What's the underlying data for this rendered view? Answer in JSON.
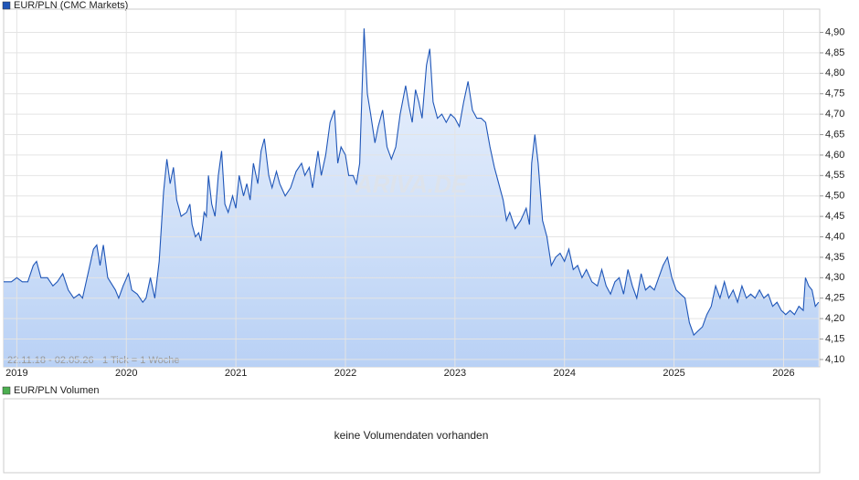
{
  "chart_data": {
    "type": "area",
    "x": [
      2018.88,
      2018.95,
      2019.0,
      2019.05,
      2019.1,
      2019.15,
      2019.18,
      2019.22,
      2019.28,
      2019.33,
      2019.37,
      2019.42,
      2019.47,
      2019.52,
      2019.57,
      2019.6,
      2019.65,
      2019.7,
      2019.73,
      2019.76,
      2019.79,
      2019.83,
      2019.9,
      2019.93,
      2019.97,
      2020.02,
      2020.05,
      2020.1,
      2020.15,
      2020.18,
      2020.22,
      2020.26,
      2020.3,
      2020.34,
      2020.37,
      2020.4,
      2020.43,
      2020.46,
      2020.5,
      2020.55,
      2020.58,
      2020.6,
      2020.63,
      2020.66,
      2020.68,
      2020.71,
      2020.73,
      2020.75,
      2020.78,
      2020.81,
      2020.84,
      2020.87,
      2020.9,
      2020.93,
      2020.97,
      2021.0,
      2021.03,
      2021.07,
      2021.1,
      2021.13,
      2021.16,
      2021.2,
      2021.23,
      2021.26,
      2021.3,
      2021.33,
      2021.37,
      2021.4,
      2021.45,
      2021.5,
      2021.55,
      2021.6,
      2021.63,
      2021.67,
      2021.7,
      2021.75,
      2021.78,
      2021.82,
      2021.86,
      2021.9,
      2021.93,
      2021.96,
      2022.0,
      2022.03,
      2022.07,
      2022.1,
      2022.13,
      2022.17,
      2022.2,
      2022.23,
      2022.27,
      2022.3,
      2022.34,
      2022.38,
      2022.42,
      2022.46,
      2022.5,
      2022.55,
      2022.58,
      2022.61,
      2022.64,
      2022.67,
      2022.7,
      2022.74,
      2022.77,
      2022.8,
      2022.84,
      2022.88,
      2022.92,
      2022.96,
      2023.0,
      2023.04,
      2023.08,
      2023.12,
      2023.16,
      2023.2,
      2023.24,
      2023.28,
      2023.32,
      2023.36,
      2023.4,
      2023.44,
      2023.47,
      2023.5,
      2023.55,
      2023.6,
      2023.65,
      2023.68,
      2023.7,
      2023.73,
      2023.76,
      2023.8,
      2023.84,
      2023.88,
      2023.92,
      2023.96,
      2024.0,
      2024.04,
      2024.08,
      2024.12,
      2024.16,
      2024.2,
      2024.25,
      2024.3,
      2024.34,
      2024.38,
      2024.42,
      2024.46,
      2024.5,
      2024.54,
      2024.58,
      2024.62,
      2024.66,
      2024.7,
      2024.74,
      2024.78,
      2024.82,
      2024.86,
      2024.9,
      2024.94,
      2024.98,
      2025.02,
      2025.06,
      2025.1,
      2025.14,
      2025.18,
      2025.22,
      2025.26,
      2025.3,
      2025.34,
      2025.38,
      2025.42,
      2025.46,
      2025.5,
      2025.54,
      2025.58,
      2025.62,
      2025.66,
      2025.7,
      2025.74,
      2025.78,
      2025.82,
      2025.86,
      2025.9,
      2025.94,
      2025.98,
      2026.02,
      2026.06,
      2026.1,
      2026.14,
      2026.18,
      2026.2,
      2026.23,
      2026.26,
      2026.29,
      2026.32
    ],
    "series": [
      {
        "name": "EUR/PLN (CMC Markets)",
        "color": "#1f56b8",
        "values": [
          4.29,
          4.29,
          4.3,
          4.29,
          4.29,
          4.33,
          4.34,
          4.3,
          4.3,
          4.28,
          4.29,
          4.31,
          4.27,
          4.25,
          4.26,
          4.25,
          4.31,
          4.37,
          4.38,
          4.33,
          4.38,
          4.3,
          4.27,
          4.25,
          4.28,
          4.31,
          4.27,
          4.26,
          4.24,
          4.25,
          4.3,
          4.25,
          4.34,
          4.51,
          4.59,
          4.53,
          4.57,
          4.49,
          4.45,
          4.46,
          4.48,
          4.43,
          4.4,
          4.41,
          4.39,
          4.46,
          4.45,
          4.55,
          4.48,
          4.45,
          4.55,
          4.61,
          4.48,
          4.46,
          4.5,
          4.47,
          4.55,
          4.5,
          4.53,
          4.49,
          4.58,
          4.53,
          4.61,
          4.64,
          4.55,
          4.52,
          4.56,
          4.53,
          4.5,
          4.52,
          4.56,
          4.58,
          4.55,
          4.57,
          4.52,
          4.61,
          4.55,
          4.6,
          4.68,
          4.71,
          4.58,
          4.62,
          4.6,
          4.55,
          4.55,
          4.53,
          4.58,
          4.91,
          4.75,
          4.7,
          4.63,
          4.67,
          4.71,
          4.62,
          4.59,
          4.62,
          4.7,
          4.77,
          4.72,
          4.68,
          4.76,
          4.73,
          4.69,
          4.82,
          4.86,
          4.73,
          4.69,
          4.7,
          4.68,
          4.7,
          4.69,
          4.67,
          4.73,
          4.78,
          4.71,
          4.69,
          4.69,
          4.68,
          4.62,
          4.57,
          4.53,
          4.49,
          4.44,
          4.46,
          4.42,
          4.44,
          4.47,
          4.43,
          4.58,
          4.65,
          4.58,
          4.44,
          4.4,
          4.33,
          4.35,
          4.36,
          4.34,
          4.37,
          4.32,
          4.33,
          4.3,
          4.32,
          4.29,
          4.28,
          4.32,
          4.28,
          4.26,
          4.29,
          4.3,
          4.26,
          4.32,
          4.28,
          4.25,
          4.31,
          4.27,
          4.28,
          4.27,
          4.3,
          4.33,
          4.35,
          4.3,
          4.27,
          4.26,
          4.25,
          4.19,
          4.16,
          4.17,
          4.18,
          4.21,
          4.23,
          4.28,
          4.25,
          4.29,
          4.25,
          4.27,
          4.24,
          4.28,
          4.25,
          4.26,
          4.25,
          4.27,
          4.25,
          4.26,
          4.23,
          4.24,
          4.22,
          4.21,
          4.22,
          4.21,
          4.23,
          4.22,
          4.3,
          4.28,
          4.27,
          4.23,
          4.24
        ]
      }
    ],
    "xlim": [
      2018.88,
      2026.33
    ],
    "xticks": [
      2019,
      2020,
      2021,
      2022,
      2023,
      2024,
      2025,
      2026
    ],
    "ylim": [
      4.082,
      4.957
    ],
    "yticks": [
      {
        "value": 4.1,
        "label": "4,10"
      },
      {
        "value": 4.15,
        "label": "4,15"
      },
      {
        "value": 4.2,
        "label": "4,20"
      },
      {
        "value": 4.25,
        "label": "4,25"
      },
      {
        "value": 4.3,
        "label": "4,30"
      },
      {
        "value": 4.35,
        "label": "4,35"
      },
      {
        "value": 4.4,
        "label": "4,40"
      },
      {
        "value": 4.45,
        "label": "4,45"
      },
      {
        "value": 4.5,
        "label": "4,50"
      },
      {
        "value": 4.55,
        "label": "4,55"
      },
      {
        "value": 4.6,
        "label": "4,60"
      },
      {
        "value": 4.65,
        "label": "4,65"
      },
      {
        "value": 4.7,
        "label": "4,70"
      },
      {
        "value": 4.75,
        "label": "4,75"
      },
      {
        "value": 4.8,
        "label": "4,80"
      },
      {
        "value": 4.85,
        "label": "4,85"
      },
      {
        "value": 4.9,
        "label": "4,90"
      }
    ],
    "grid": true,
    "date_range": "22.11.18 - 02.05.26",
    "tick_note": "1 Tick = 1 Woche",
    "watermark": "ARIVA.DE"
  },
  "volume_panel": {
    "legend": "EUR/PLN Volumen",
    "color": "#4caf50",
    "message": "keine Volumendaten vorhanden"
  }
}
